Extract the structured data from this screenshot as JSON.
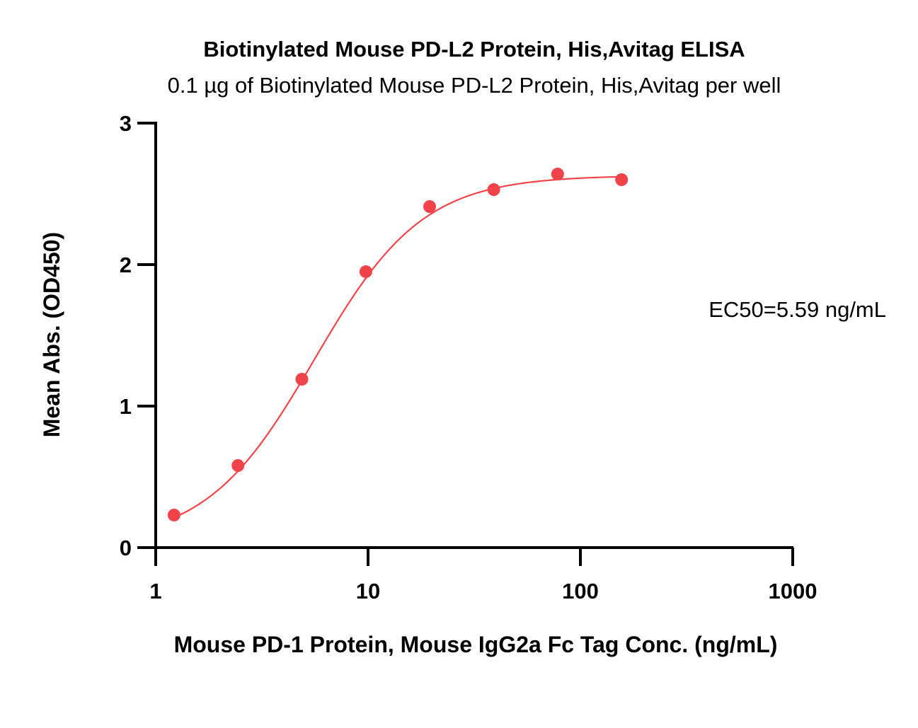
{
  "chart_data": {
    "type": "scatter",
    "title": "Biotinylated Mouse PD-L2 Protein, His,Avitag ELISA",
    "subtitle": "0.1 µg of Biotinylated Mouse PD-L2 Protein, His,Avitag per well",
    "xlabel": "Mouse PD-1 Protein, Mouse IgG2a Fc Tag Conc. (ng/mL)",
    "ylabel": "Mean Abs. (OD450)",
    "x_scale": "log",
    "xlim": [
      1,
      1000
    ],
    "ylim": [
      0,
      3
    ],
    "x_ticks": [
      1,
      10,
      100,
      1000
    ],
    "x_tick_labels": [
      "1",
      "10",
      "100",
      "1000"
    ],
    "y_ticks": [
      0,
      1,
      2,
      3
    ],
    "y_tick_labels": [
      "0",
      "1",
      "2",
      "3"
    ],
    "grid": false,
    "series": [
      {
        "color": "#f0444a",
        "points": [
          {
            "x": 1.22,
            "y": 0.23
          },
          {
            "x": 2.44,
            "y": 0.58
          },
          {
            "x": 4.88,
            "y": 1.19
          },
          {
            "x": 9.77,
            "y": 1.95
          },
          {
            "x": 19.5,
            "y": 2.41
          },
          {
            "x": 39.1,
            "y": 2.53
          },
          {
            "x": 78.1,
            "y": 2.64
          },
          {
            "x": 156.3,
            "y": 2.6
          }
        ],
        "fit": {
          "model": "4PL",
          "bottom": 0.03,
          "top": 2.63,
          "ec50": 5.59,
          "hill": 1.7,
          "x_range": [
            1.22,
            156.3
          ]
        }
      }
    ],
    "annotation": "EC50=5.59 ng/mL"
  }
}
